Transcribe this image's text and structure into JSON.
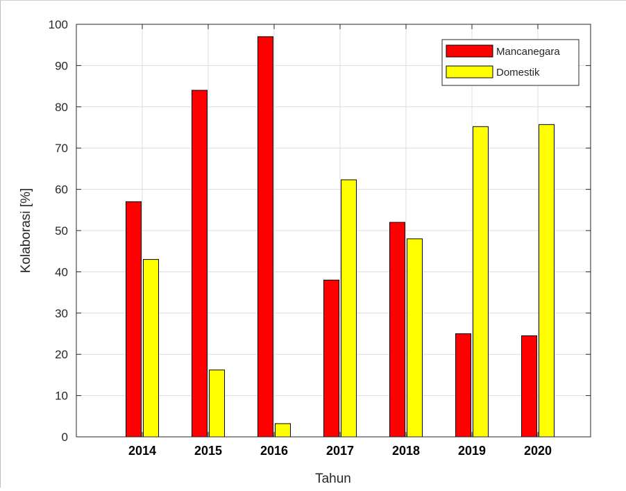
{
  "chart_data": {
    "type": "bar",
    "categories": [
      "2014",
      "2015",
      "2016",
      "2017",
      "2018",
      "2019",
      "2020"
    ],
    "series": [
      {
        "name": "Mancanegara",
        "color": "#ff0000",
        "values": [
          57,
          84,
          97,
          38,
          52,
          25,
          24.5
        ]
      },
      {
        "name": "Domestik",
        "color": "#ffff00",
        "values": [
          43,
          16.2,
          3.2,
          62.3,
          48,
          75.2,
          75.7
        ]
      }
    ],
    "title": "",
    "xlabel": "Tahun",
    "ylabel": "Kolaborasi [%]",
    "ylim": [
      0,
      100
    ],
    "yticks": [
      0,
      10,
      20,
      30,
      40,
      50,
      60,
      70,
      80,
      90,
      100
    ],
    "grid": true,
    "legend_position": "top-right"
  }
}
